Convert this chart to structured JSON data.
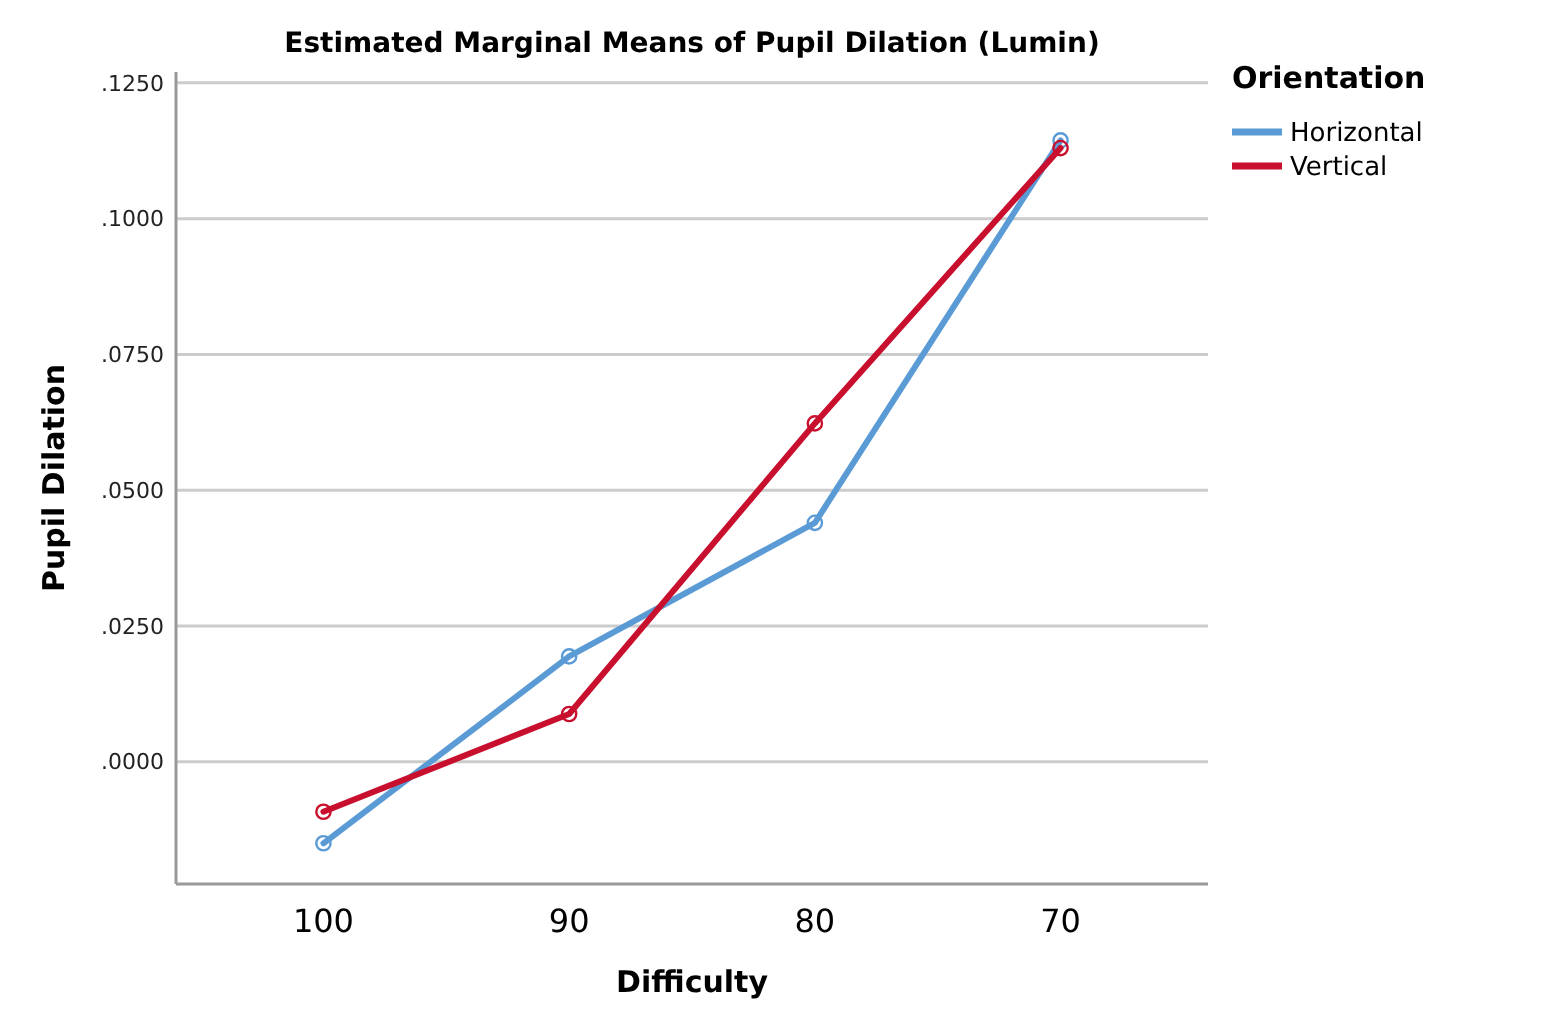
{
  "chart_data": {
    "type": "line",
    "title": "Estimated Marginal Means of Pupil Dilation (Lumin)",
    "xlabel": "Difficulty",
    "ylabel": "Pupil Dilation",
    "legend_title": "Orientation",
    "categories": [
      "100",
      "90",
      "80",
      "70"
    ],
    "series": [
      {
        "name": "Horizontal",
        "color": "#5b9bd5",
        "values": [
          -0.015,
          0.0194,
          0.044,
          0.1144
        ]
      },
      {
        "name": "Vertical",
        "color": "#c8102e",
        "values": [
          -0.0092,
          0.0088,
          0.0623,
          0.113
        ]
      }
    ],
    "ylim": [
      -0.0225,
      0.127
    ],
    "yticks": [
      {
        "value": 0,
        "label": ".0000"
      },
      {
        "value": 0.025,
        "label": ".0250"
      },
      {
        "value": 0.05,
        "label": ".0500"
      },
      {
        "value": 0.075,
        "label": ".0750"
      },
      {
        "value": 0.1,
        "label": ".1000"
      },
      {
        "value": 0.125,
        "label": ".1250"
      }
    ],
    "grid": "y",
    "legend": "top right",
    "marker": "circle",
    "line_style": "solid"
  }
}
